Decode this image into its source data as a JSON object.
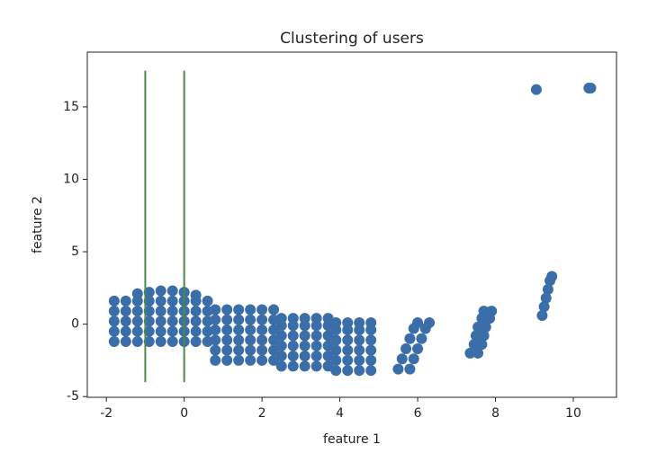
{
  "chart_data": {
    "type": "scatter",
    "title": "Clustering of users",
    "x_label": "feature 1",
    "y_label": "feature 2",
    "color": "#3b6ea8",
    "x": [
      -1.8,
      -1.8,
      -1.8,
      -1.8,
      -1.8,
      -1.5,
      -1.5,
      -1.5,
      -1.5,
      -1.5,
      -1.2,
      -1.2,
      -1.2,
      -1.2,
      -1.2,
      -0.9,
      -0.9,
      -0.9,
      -0.9,
      -0.9,
      -0.6,
      -0.6,
      -0.6,
      -0.6,
      -0.6,
      -0.3,
      -0.3,
      -0.3,
      -0.3,
      -0.3,
      0,
      0,
      0,
      0,
      0,
      0.3,
      0.3,
      0.3,
      0.3,
      0.3,
      0.6,
      0.6,
      0.6,
      0.6,
      0.6,
      -1.2,
      -0.9,
      -0.6,
      -0.3,
      0,
      0.3,
      0.8,
      0.8,
      0.8,
      0.8,
      0.8,
      0.8,
      1.1,
      1.1,
      1.1,
      1.1,
      1.1,
      1.1,
      1.4,
      1.4,
      1.4,
      1.4,
      1.4,
      1.4,
      1.7,
      1.7,
      1.7,
      1.7,
      1.7,
      1.7,
      2.0,
      2.0,
      2.0,
      2.0,
      2.0,
      2.0,
      2.3,
      2.3,
      2.3,
      2.3,
      2.3,
      2.3,
      2.5,
      2.5,
      2.5,
      2.5,
      2.5,
      2.5,
      2.8,
      2.8,
      2.8,
      2.8,
      2.8,
      2.8,
      3.1,
      3.1,
      3.1,
      3.1,
      3.1,
      3.1,
      3.4,
      3.4,
      3.4,
      3.4,
      3.4,
      3.4,
      3.7,
      3.7,
      3.7,
      3.7,
      3.7,
      3.7,
      3.9,
      3.9,
      3.9,
      3.9,
      3.9,
      3.9,
      4.2,
      4.2,
      4.2,
      4.2,
      4.2,
      4.2,
      4.5,
      4.5,
      4.5,
      4.5,
      4.5,
      4.5,
      4.8,
      4.8,
      4.8,
      4.8,
      4.8,
      4.8,
      5.5,
      5.8,
      5.6,
      5.9,
      5.7,
      6.0,
      5.8,
      6.1,
      5.9,
      6.2,
      6.0,
      6.3,
      7.35,
      7.55,
      7.45,
      7.65,
      7.5,
      7.7,
      7.55,
      7.75,
      7.65,
      7.85,
      7.7,
      7.9,
      9.2,
      9.25,
      9.3,
      9.35,
      9.4,
      9.45,
      9.05,
      10.4,
      10.45
    ],
    "values": [
      -1.2,
      -0.5,
      0.2,
      0.9,
      1.6,
      -1.2,
      -0.5,
      0.2,
      0.9,
      1.6,
      -1.2,
      -0.5,
      0.2,
      0.9,
      1.6,
      -1.2,
      -0.5,
      0.2,
      0.9,
      1.6,
      -1.2,
      -0.5,
      0.2,
      0.9,
      1.6,
      -1.2,
      -0.5,
      0.2,
      0.9,
      1.6,
      -1.2,
      -0.5,
      0.2,
      0.9,
      1.6,
      -1.2,
      -0.5,
      0.2,
      0.9,
      1.6,
      -1.2,
      -0.5,
      0.2,
      0.9,
      1.6,
      2.1,
      2.2,
      2.3,
      2.3,
      2.2,
      2.0,
      -2.5,
      -1.8,
      -1.1,
      -0.4,
      0.3,
      1.0,
      -2.5,
      -1.8,
      -1.1,
      -0.4,
      0.3,
      1.0,
      -2.5,
      -1.8,
      -1.1,
      -0.4,
      0.3,
      1.0,
      -2.5,
      -1.8,
      -1.1,
      -0.4,
      0.3,
      1.0,
      -2.5,
      -1.8,
      -1.1,
      -0.4,
      0.3,
      1.0,
      -2.5,
      -1.8,
      -1.1,
      -0.4,
      0.3,
      1.0,
      -2.9,
      -2.2,
      -1.5,
      -0.8,
      -0.1,
      0.4,
      -2.9,
      -2.2,
      -1.5,
      -0.8,
      -0.1,
      0.4,
      -2.9,
      -2.2,
      -1.5,
      -0.8,
      -0.1,
      0.4,
      -2.9,
      -2.2,
      -1.5,
      -0.8,
      -0.1,
      0.4,
      -2.9,
      -2.2,
      -1.5,
      -0.8,
      -0.1,
      0.4,
      -3.2,
      -2.5,
      -1.8,
      -1.1,
      -0.4,
      0.1,
      -3.2,
      -2.5,
      -1.8,
      -1.1,
      -0.4,
      0.1,
      -3.2,
      -2.5,
      -1.8,
      -1.1,
      -0.4,
      0.1,
      -3.2,
      -2.5,
      -1.8,
      -1.1,
      -0.4,
      0.1,
      -3.1,
      -3.1,
      -2.4,
      -2.4,
      -1.7,
      -1.7,
      -1.0,
      -1.0,
      -0.3,
      -0.3,
      0.1,
      0.1,
      -2.0,
      -2.0,
      -1.4,
      -1.4,
      -0.8,
      -0.8,
      -0.2,
      -0.2,
      0.4,
      0.4,
      0.9,
      0.9,
      0.6,
      1.2,
      1.8,
      2.4,
      3.0,
      3.3,
      16.2,
      16.3,
      16.3
    ],
    "vlines": [
      {
        "x": -1,
        "ymin": -4,
        "ymax": 17.5,
        "color": "#4a8a4a"
      },
      {
        "x": 0,
        "ymin": -4,
        "ymax": 17.5,
        "color": "#4a8a4a"
      }
    ],
    "xlim": [
      -2.49,
      11.11
    ],
    "ylim": [
      -5.05,
      18.78
    ],
    "xticks": [
      -2,
      0,
      2,
      4,
      6,
      8,
      10
    ],
    "yticks": [
      -5,
      0,
      5,
      10,
      15
    ]
  }
}
